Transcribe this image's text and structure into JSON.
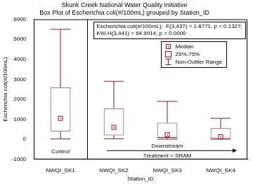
{
  "chart_data": {
    "type": "box",
    "title": [
      "Skunk Creek National Water Quality Initiative",
      "Box Plot of Escherichia coli(#/100mL) grouped by Station_ID"
    ],
    "x_label": "Station_ID",
    "y_label": "Escherichia coli(#/100mL)",
    "categories": [
      "NWQI_SK1",
      "NWQI_SK2",
      "NWQI_SK3",
      "NWQI_SK4"
    ],
    "min": [
      20,
      30,
      10,
      5
    ],
    "q1": [
      400,
      200,
      80,
      50
    ],
    "median": [
      1050,
      600,
      230,
      130
    ],
    "q3": [
      2600,
      1550,
      830,
      560
    ],
    "max": [
      5500,
      2900,
      1900,
      1050
    ],
    "color": "#8b1a1a",
    "ylim": [
      -1000,
      6000
    ],
    "yticks": [
      -1000,
      0,
      1000,
      2000,
      3000,
      4000,
      5000,
      6000
    ],
    "grid": false,
    "legend": "top right",
    "legend_entries": [
      "Median",
      "25%-75%",
      "Non-Outlier Range"
    ],
    "stats_text": [
      "Escherichia coli(#/100mL):  F(3,437) = 1.8771, p = 0.1327;",
      "KW-H(3,441) = 64.9914, p = 0.0000"
    ],
    "annotations": {
      "control": "Control",
      "downstream": "Downstream",
      "treatment": "Treatment = SRAM"
    }
  }
}
